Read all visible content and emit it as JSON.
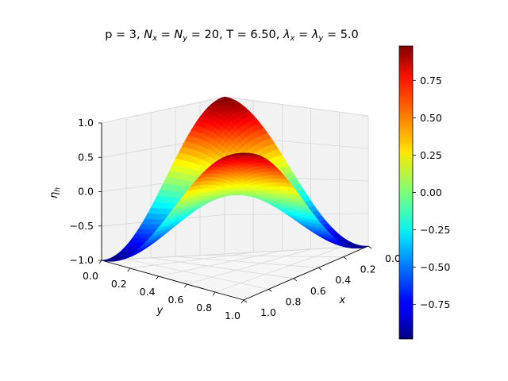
{
  "chart_data": {
    "type": "surface3d",
    "title": "p = 3, N_x = N_y = 20, T = 6.50, λ_x = λ_y = 5.0",
    "title_parts": {
      "p": "p = 3, ",
      "nx_sym": "N",
      "nx_sub": "x",
      "eq1": " = ",
      "ny_sym": "N",
      "ny_sub": "y",
      "eq2": " = 20, T = 6.50, ",
      "lx_sym": "λ",
      "lx_sub": "x",
      "eq3": " = ",
      "ly_sym": "λ",
      "ly_sub": "y",
      "eq4": " = 5.0"
    },
    "xlabel": "x",
    "ylabel": "y",
    "zlabel": "η",
    "zlabel_sub": "h",
    "xlim": [
      0.0,
      1.0
    ],
    "ylim": [
      0.0,
      1.0
    ],
    "zlim": [
      -1.0,
      1.0
    ],
    "x_ticks": [
      "0.0",
      "0.2",
      "0.4",
      "0.6",
      "0.8",
      "1.0"
    ],
    "y_ticks": [
      "0.0",
      "0.2",
      "0.4",
      "0.6",
      "0.8",
      "1.0"
    ],
    "z_ticks": [
      "−1.0",
      "−0.5",
      "0.0",
      "0.5",
      "1.0"
    ],
    "grid": true,
    "colormap": "jet",
    "colorbar_range": [
      -0.98,
      0.98
    ],
    "colorbar_ticks": [
      "−0.75",
      "−0.50",
      "−0.25",
      "0.00",
      "0.25",
      "0.50",
      "0.75"
    ],
    "surface_function": "η_h(x, y) = cos(π x) · cos(π y)",
    "surface_grid_lines": 20,
    "colors": {
      "pane": "#f2f2f2",
      "grid": "#d8d8d8",
      "edge": "#000000"
    }
  }
}
